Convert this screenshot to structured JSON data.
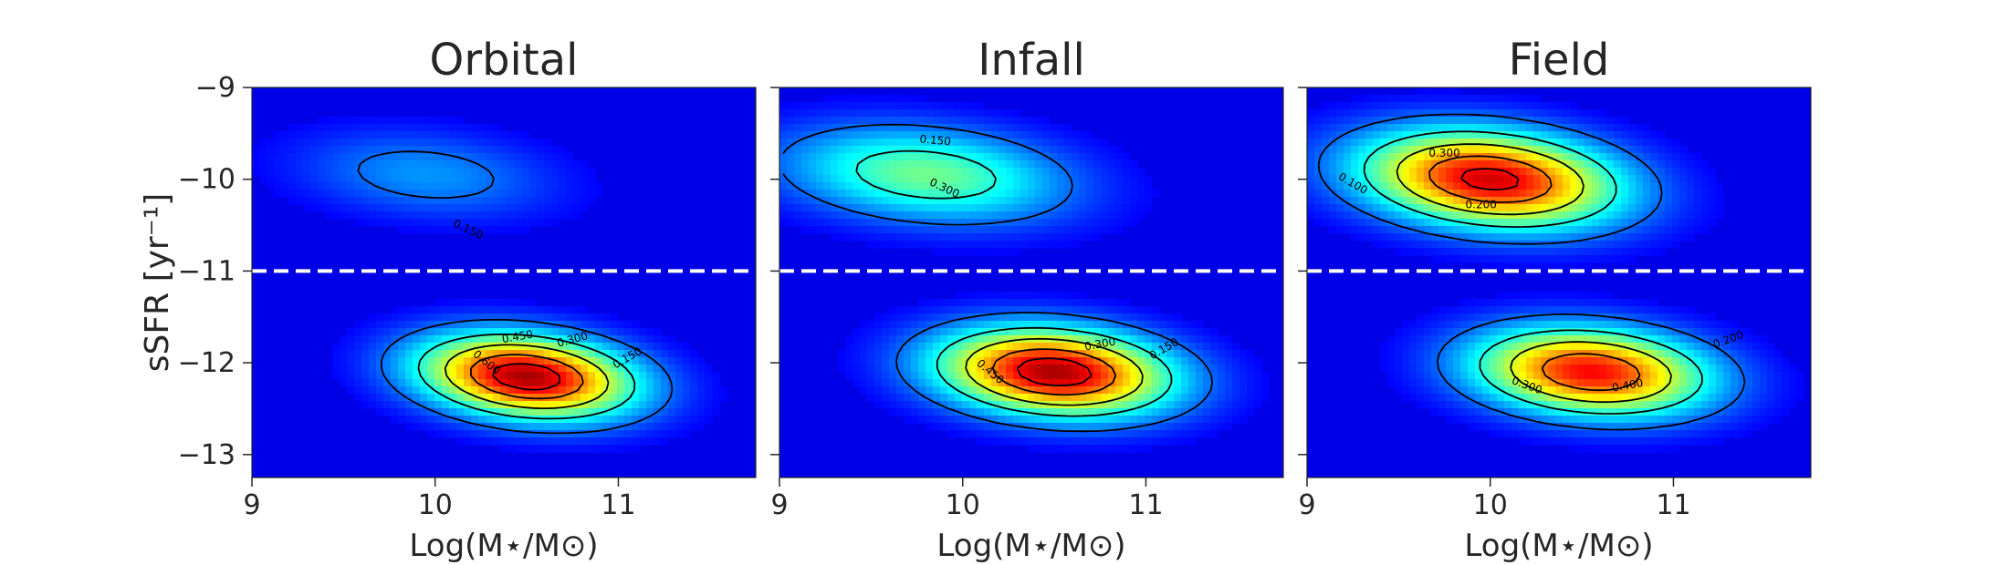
{
  "chart_data": [
    {
      "type": "heatmap",
      "title": "Orbital",
      "xlabel": "Log(M⋆/M⊙)",
      "ylabel": "sSFR [yr⁻¹]",
      "xlim": [
        9,
        11.75
      ],
      "ylim": [
        -13.25,
        -9
      ],
      "xticks": [
        9,
        10,
        11
      ],
      "yticks": [
        -9,
        -10,
        -11,
        -12,
        -13
      ],
      "threshold_line": {
        "y": -11,
        "style": "dashed",
        "color": "#ffffff"
      },
      "density_peaks": [
        {
          "x": 10.5,
          "y": -12.15,
          "weight": 1.0,
          "sx": 0.42,
          "sy": 0.3,
          "rot": -20
        },
        {
          "x": 9.95,
          "y": -9.95,
          "weight": 0.2,
          "sx": 0.5,
          "sy": 0.32,
          "rot": -15
        }
      ],
      "contour_labels": [
        {
          "text": "0.150",
          "x": 10.18,
          "y": -10.55,
          "angle": 25
        },
        {
          "text": "0.450",
          "x": 10.45,
          "y": -11.72,
          "angle": -10
        },
        {
          "text": "0.300",
          "x": 10.75,
          "y": -11.75,
          "angle": -15
        },
        {
          "text": "0.150",
          "x": 11.05,
          "y": -11.95,
          "angle": -30
        },
        {
          "text": "0.600",
          "x": 10.28,
          "y": -12.0,
          "angle": 40
        }
      ]
    },
    {
      "type": "heatmap",
      "title": "Infall",
      "xlabel": "Log(M⋆/M⊙)",
      "ylabel": "",
      "xlim": [
        9,
        11.75
      ],
      "ylim": [
        -13.25,
        -9
      ],
      "xticks": [
        9,
        10,
        11
      ],
      "yticks": [
        -9,
        -10,
        -11,
        -12,
        -13
      ],
      "threshold_line": {
        "y": -11,
        "style": "dashed",
        "color": "#ffffff"
      },
      "density_peaks": [
        {
          "x": 10.5,
          "y": -12.1,
          "weight": 1.0,
          "sx": 0.45,
          "sy": 0.32,
          "rot": -15
        },
        {
          "x": 9.8,
          "y": -9.95,
          "weight": 0.45,
          "sx": 0.55,
          "sy": 0.35,
          "rot": -15
        }
      ],
      "contour_labels": [
        {
          "text": "0.150",
          "x": 9.85,
          "y": -9.58,
          "angle": 5
        },
        {
          "text": "0.300",
          "x": 9.9,
          "y": -10.1,
          "angle": 25
        },
        {
          "text": "0.300",
          "x": 10.75,
          "y": -11.8,
          "angle": -10
        },
        {
          "text": "0.150",
          "x": 11.1,
          "y": -11.85,
          "angle": -30
        },
        {
          "text": "0.450",
          "x": 10.15,
          "y": -12.1,
          "angle": 40
        }
      ]
    },
    {
      "type": "heatmap",
      "title": "Field",
      "xlabel": "Log(M⋆/M⊙)",
      "ylabel": "",
      "xlim": [
        9,
        11.75
      ],
      "ylim": [
        -13.25,
        -9
      ],
      "xticks": [
        9,
        10,
        11
      ],
      "yticks": [
        -9,
        -10,
        -11,
        -12,
        -13
      ],
      "threshold_line": {
        "y": -11,
        "style": "dashed",
        "color": "#ffffff"
      },
      "density_peaks": [
        {
          "x": 10.0,
          "y": -10.0,
          "weight": 0.95,
          "sx": 0.5,
          "sy": 0.35,
          "rot": -18
        },
        {
          "x": 10.55,
          "y": -12.1,
          "weight": 0.9,
          "sx": 0.45,
          "sy": 0.32,
          "rot": -15
        }
      ],
      "contour_labels": [
        {
          "text": "0.300",
          "x": 9.75,
          "y": -9.72,
          "angle": 0
        },
        {
          "text": "0.100",
          "x": 9.25,
          "y": -10.05,
          "angle": 30
        },
        {
          "text": "0.200",
          "x": 9.95,
          "y": -10.28,
          "angle": 0
        },
        {
          "text": "0.200",
          "x": 11.3,
          "y": -11.75,
          "angle": -20
        },
        {
          "text": "0.400",
          "x": 10.75,
          "y": -12.25,
          "angle": -10
        },
        {
          "text": "0.300",
          "x": 10.2,
          "y": -12.25,
          "angle": 20
        }
      ]
    }
  ]
}
